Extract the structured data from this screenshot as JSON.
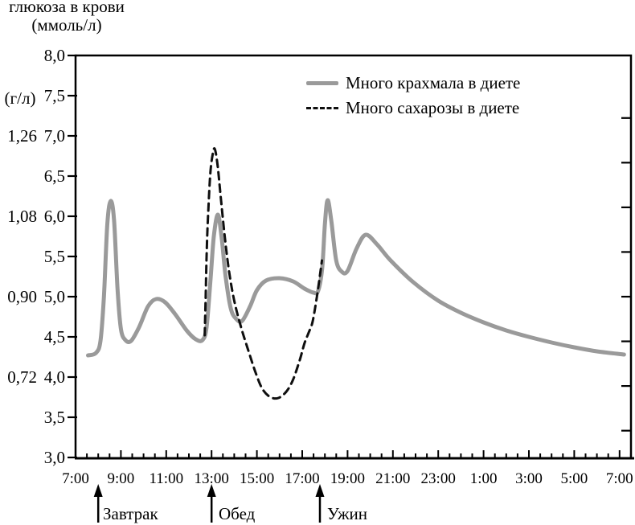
{
  "title": {
    "line1": "глюкоза в крови",
    "line2": "(ммоль/л)"
  },
  "colors": {
    "starch": "#9a9a9a",
    "sucrose": "#0f0f0f",
    "axis": "#000000"
  },
  "legend": [
    {
      "label": "Много крахмала в диете",
      "style": "solid"
    },
    {
      "label": "Много сахарозы в диете",
      "style": "dashed"
    }
  ],
  "meals": [
    {
      "label": "Завтрак",
      "time": "8:00",
      "t": 1.0
    },
    {
      "label": "Обед",
      "time": "13:00",
      "t": 6.0
    },
    {
      "label": "Ужин",
      "time": "17:45",
      "t": 10.78
    }
  ],
  "chart_data": {
    "type": "line",
    "title": "глюкоза в крови (ммоль/л)",
    "x_unit": "hours_after_07:00",
    "x_range_hours": [
      0,
      24.5
    ],
    "x_major_step_hours": 2,
    "x_minor_step_hours": 0.5,
    "x_tick_labels": [
      "7:00",
      "9:00",
      "11:00",
      "13:00",
      "15:00",
      "17:00",
      "19:00",
      "21:00",
      "23:00",
      "1:00",
      "3:00",
      "5:00",
      "7:00"
    ],
    "grid": false,
    "legend_position": "top-right-inside",
    "y_axis": {
      "unit": "ммоль/л",
      "min": 3.0,
      "max": 8.0,
      "tick_step": 0.5,
      "tick_labels": [
        "8,0",
        "7,5",
        "7,0",
        "6,5",
        "6,0",
        "5,5",
        "5,0",
        "4,5",
        "4,0",
        "3,5",
        "3,0"
      ]
    },
    "y2_axis": {
      "unit": "г/л",
      "mmol_per_g": 5.5556,
      "labels": [
        {
          "text": "1,26",
          "mmol": 7.0
        },
        {
          "text": "1,08",
          "mmol": 6.0
        },
        {
          "text": "0,90",
          "mmol": 5.0
        },
        {
          "text": "0,72",
          "mmol": 4.0
        }
      ],
      "minor_ticks_g_per_l": [
        1.3,
        1.2,
        1.1,
        1.0,
        0.9,
        0.8,
        0.7,
        0.6
      ]
    },
    "series": [
      {
        "name": "Много крахмала в диете",
        "style": "solid",
        "color": "#9a9a9a",
        "points": [
          [
            0.55,
            4.27
          ],
          [
            0.9,
            4.3
          ],
          [
            1.1,
            4.45
          ],
          [
            1.25,
            5.0
          ],
          [
            1.4,
            5.9
          ],
          [
            1.55,
            6.19
          ],
          [
            1.7,
            5.95
          ],
          [
            1.85,
            5.1
          ],
          [
            2.0,
            4.6
          ],
          [
            2.2,
            4.46
          ],
          [
            2.45,
            4.45
          ],
          [
            2.8,
            4.62
          ],
          [
            3.2,
            4.88
          ],
          [
            3.55,
            4.97
          ],
          [
            3.95,
            4.93
          ],
          [
            4.4,
            4.78
          ],
          [
            4.9,
            4.58
          ],
          [
            5.3,
            4.47
          ],
          [
            5.6,
            4.46
          ],
          [
            5.78,
            4.62
          ],
          [
            5.95,
            5.2
          ],
          [
            6.1,
            5.75
          ],
          [
            6.28,
            6.02
          ],
          [
            6.45,
            5.72
          ],
          [
            6.62,
            5.25
          ],
          [
            6.85,
            4.85
          ],
          [
            7.1,
            4.72
          ],
          [
            7.35,
            4.7
          ],
          [
            7.7,
            4.88
          ],
          [
            8.0,
            5.08
          ],
          [
            8.4,
            5.2
          ],
          [
            9.0,
            5.23
          ],
          [
            9.6,
            5.19
          ],
          [
            10.1,
            5.1
          ],
          [
            10.5,
            5.05
          ],
          [
            10.7,
            5.07
          ],
          [
            10.88,
            5.35
          ],
          [
            11.0,
            5.9
          ],
          [
            11.12,
            6.2
          ],
          [
            11.28,
            5.95
          ],
          [
            11.5,
            5.45
          ],
          [
            11.75,
            5.31
          ],
          [
            12.0,
            5.32
          ],
          [
            12.4,
            5.6
          ],
          [
            12.8,
            5.77
          ],
          [
            13.3,
            5.65
          ],
          [
            13.9,
            5.45
          ],
          [
            14.9,
            5.18
          ],
          [
            16.0,
            4.95
          ],
          [
            17.0,
            4.8
          ],
          [
            18.0,
            4.68
          ],
          [
            19.0,
            4.58
          ],
          [
            20.0,
            4.5
          ],
          [
            21.0,
            4.43
          ],
          [
            22.0,
            4.37
          ],
          [
            23.0,
            4.32
          ],
          [
            24.2,
            4.28
          ]
        ]
      },
      {
        "name": "Много сахарозы в диете",
        "style": "dashed",
        "color": "#0f0f0f",
        "points": [
          [
            5.7,
            4.52
          ],
          [
            5.74,
            5.0
          ],
          [
            5.79,
            5.6
          ],
          [
            5.86,
            6.1
          ],
          [
            5.95,
            6.55
          ],
          [
            6.05,
            6.77
          ],
          [
            6.14,
            6.84
          ],
          [
            6.26,
            6.65
          ],
          [
            6.4,
            6.25
          ],
          [
            6.58,
            5.75
          ],
          [
            6.78,
            5.3
          ],
          [
            7.0,
            4.95
          ],
          [
            7.3,
            4.62
          ],
          [
            7.6,
            4.35
          ],
          [
            7.95,
            4.05
          ],
          [
            8.25,
            3.85
          ],
          [
            8.6,
            3.75
          ],
          [
            8.95,
            3.74
          ],
          [
            9.3,
            3.82
          ],
          [
            9.6,
            3.97
          ],
          [
            9.9,
            4.22
          ],
          [
            10.1,
            4.42
          ],
          [
            10.28,
            4.55
          ],
          [
            10.45,
            4.68
          ],
          [
            10.62,
            4.95
          ],
          [
            10.76,
            5.22
          ],
          [
            10.87,
            5.45
          ]
        ]
      }
    ]
  }
}
